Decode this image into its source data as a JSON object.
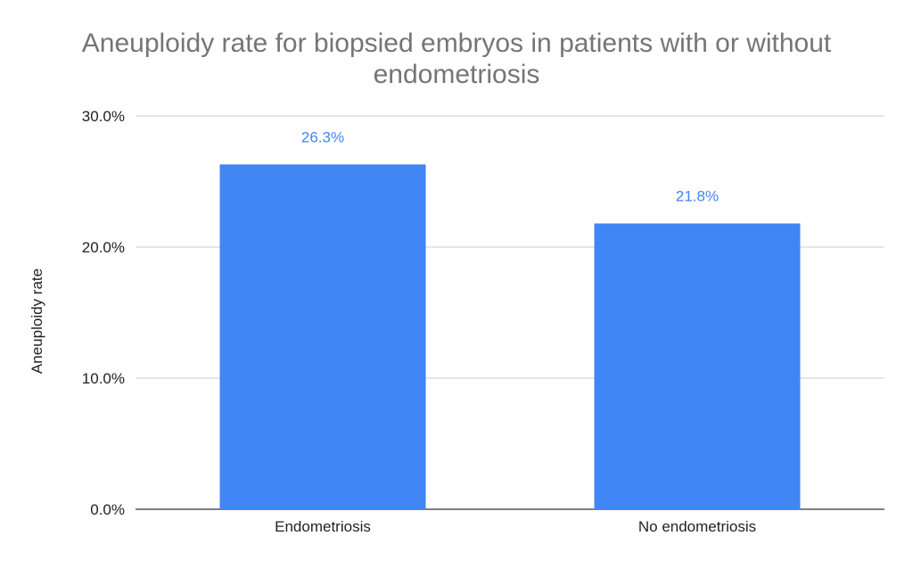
{
  "chart_data": {
    "type": "bar",
    "title_lines": [
      "Aneuploidy rate for biopsied embryos in patients with or without",
      "endometriosis"
    ],
    "xlabel": "",
    "ylabel": "Aneuploidy rate",
    "categories": [
      "Endometriosis",
      "No endometriosis"
    ],
    "values": [
      26.3,
      21.8
    ],
    "data_labels": [
      "26.3%",
      "21.8%"
    ],
    "ylim": [
      0,
      30
    ],
    "yticks": [
      0,
      10,
      20,
      30
    ],
    "ytick_labels": [
      "0.0%",
      "10.0%",
      "20.0%",
      "30.0%"
    ],
    "grid": true,
    "legend": "none",
    "colors": {
      "bar": "#4285f4",
      "data_label": "#4285f4",
      "title": "#757575",
      "grid": "#cccccc",
      "axis": "#333333"
    }
  }
}
